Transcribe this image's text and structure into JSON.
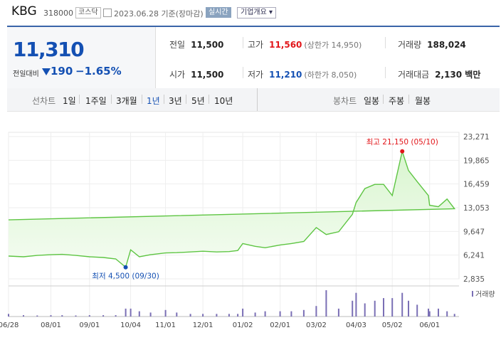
{
  "header": {
    "name": "KBG",
    "code": "318000",
    "market": "코스닥",
    "date": "2023.06.28 기준(장마감)",
    "live_btn": "실시간",
    "info_btn": "기업개요 ▾"
  },
  "quote": {
    "price": "11,310",
    "change_label": "전일대비",
    "change": "190",
    "change_pct": "−1.65%",
    "prev_label": "전일",
    "prev": "11,500",
    "high_label": "고가",
    "high": "11,560",
    "high_limit": "(상한가 14,950)",
    "volume_label": "거래량",
    "volume": "188,024",
    "open_label": "시가",
    "open": "11,500",
    "low_label": "저가",
    "low": "11,210",
    "low_limit": "(하한가 8,050)",
    "amount_label": "거래대금",
    "amount": "2,130 백만"
  },
  "periods": {
    "label": "선차트",
    "items": [
      "1일",
      "1주일",
      "3개월",
      "1년",
      "3년",
      "5년",
      "10년"
    ],
    "selected": "1년",
    "candle_label": "봉차트",
    "candle_items": [
      "일봉",
      "주봉",
      "월봉"
    ]
  },
  "colors": {
    "accent": "#1450b3",
    "up": "#e2161a",
    "line": "#5ec543",
    "fill": "#d9f5cf",
    "volume": "#7a6fb5"
  },
  "chart_data": {
    "type": "area",
    "title": "",
    "xlabel": "",
    "ylabel": "",
    "ylim": [
      2835,
      23271
    ],
    "yticks": [
      "23,271",
      "19,865",
      "16,459",
      "13,053",
      "9,647",
      "6,241",
      "2,835"
    ],
    "xticks": [
      "06/28",
      "08/01",
      "09/01",
      "10/04",
      "11/01",
      "12/01",
      "01/02",
      "02/01",
      "03/02",
      "04/03",
      "05/02",
      "06/01"
    ],
    "grid": true,
    "x": [
      "06/28",
      "07/10",
      "07/21",
      "08/01",
      "08/10",
      "08/21",
      "09/01",
      "09/12",
      "09/22",
      "09/30",
      "10/04",
      "10/11",
      "10/20",
      "11/01",
      "11/10",
      "11/21",
      "12/01",
      "12/12",
      "12/22",
      "12/29",
      "01/02",
      "01/12",
      "01/20",
      "02/01",
      "02/10",
      "02/20",
      "03/02",
      "03/10",
      "03/20",
      "03/31",
      "04/03",
      "04/10",
      "04/18",
      "04/25",
      "05/02",
      "05/10",
      "05/15",
      "05/22",
      "05/31",
      "06/01",
      "06/08",
      "06/15",
      "06/21",
      "06/28"
    ],
    "series": [
      {
        "values": [
          6100,
          6000,
          6200,
          6300,
          6350,
          6200,
          6000,
          5900,
          5700,
          4500,
          7000,
          6000,
          6300,
          6550,
          6600,
          6700,
          6800,
          6700,
          6750,
          6900,
          7900,
          7500,
          7300,
          7700,
          7900,
          8200,
          10200,
          9200,
          9600,
          12100,
          13800,
          15800,
          16400,
          16400,
          14800,
          21150,
          18400,
          16800,
          14800,
          13400,
          13200,
          14300,
          12900,
          11310
        ]
      }
    ],
    "annotations": [
      {
        "label": "최고 21,150 (05/10)",
        "x": "05/10",
        "y": 21150
      },
      {
        "label": "최저 4,500 (09/30)",
        "x": "09/30",
        "y": 4500
      }
    ],
    "volume": {
      "legend": "거래량",
      "values": [
        0.05,
        0.05,
        0.04,
        0.05,
        0.05,
        0.04,
        0.05,
        0.05,
        0.05,
        0.3,
        0.3,
        0.2,
        0.15,
        0.25,
        0.15,
        0.1,
        0.1,
        0.1,
        0.1,
        0.1,
        0.3,
        0.15,
        0.2,
        0.2,
        0.2,
        0.25,
        0.4,
        1.0,
        0.3,
        0.6,
        0.9,
        0.5,
        0.6,
        0.7,
        0.7,
        0.9,
        0.6,
        0.45,
        0.3,
        0.2,
        0.3,
        0.2,
        0.1,
        0.1
      ]
    }
  }
}
